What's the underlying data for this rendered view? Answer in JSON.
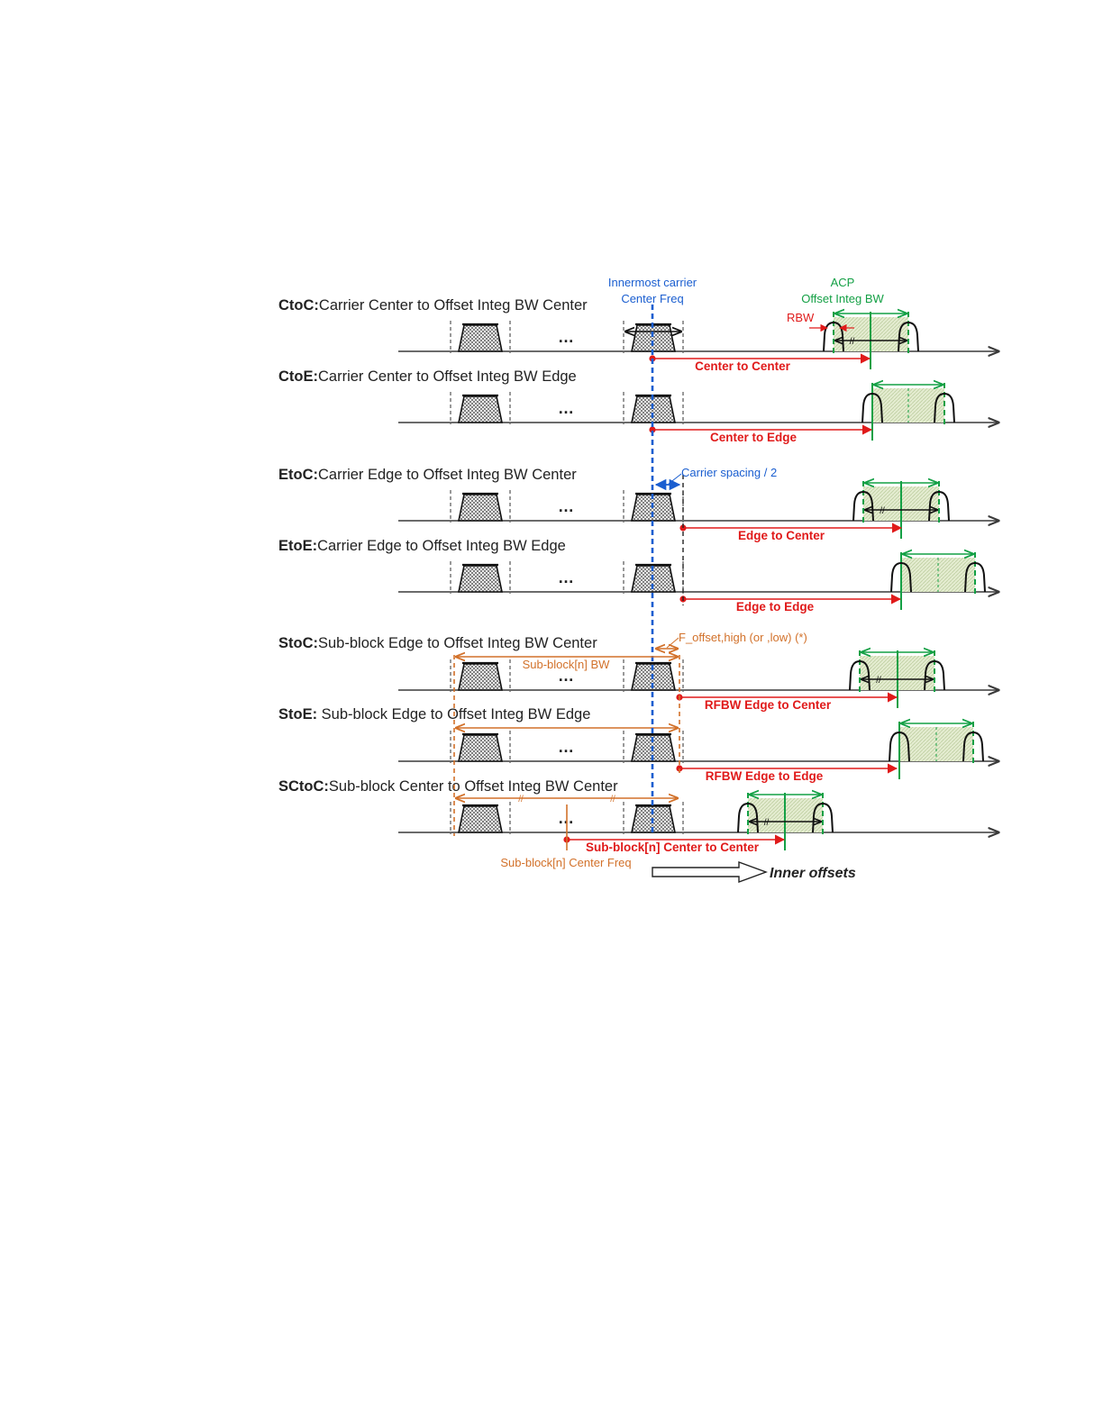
{
  "rows": [
    {
      "abbr": "CtoC:",
      "desc": "Carrier Center to Offset Integ BW Center",
      "offset_label": "Center to Center"
    },
    {
      "abbr": "CtoE:",
      "desc": "Carrier Center to Offset Integ BW Edge",
      "offset_label": "Center to Edge"
    },
    {
      "abbr": "EtoC:",
      "desc": "Carrier Edge to Offset Integ BW Center",
      "offset_label": "Edge to Center"
    },
    {
      "abbr": "EtoE:",
      "desc": "Carrier Edge to Offset Integ BW Edge",
      "offset_label": "Edge to Edge"
    },
    {
      "abbr": "StoC:",
      "desc": "Sub-block Edge to Offset Integ BW Center",
      "offset_label": "RFBW Edge to Center"
    },
    {
      "abbr": "StoE:",
      "desc": " Sub-block Edge to Offset Integ BW Edge",
      "offset_label": "RFBW Edge to Edge"
    },
    {
      "abbr": "SCtoC:",
      "desc": "Sub-block Center to Offset Integ BW Center",
      "offset_label": "Sub-block[n] Center to Center"
    }
  ],
  "annotations": {
    "innermost_line1": "Innermost carrier",
    "innermost_line2": "Center Freq",
    "acp_line1": "ACP",
    "acp_line2": "Offset Integ BW",
    "rbw": "RBW",
    "carrier_spacing": "Carrier spacing / 2",
    "f_offset": "F_offset,high (or ,low) (*)",
    "subblock_bw": "Sub-block[n] BW",
    "subblock_center_freq": "Sub-block[n] Center Freq",
    "inner_offsets": "Inner offsets",
    "ellipsis": "…",
    "break_mark": "//"
  },
  "colors": {
    "axis": "#3a3a3a",
    "blue": "#1a5ed0",
    "green": "#14a045",
    "red": "#e01a1a",
    "orange": "#d2712a",
    "green_fill": "#dfe8c8"
  }
}
